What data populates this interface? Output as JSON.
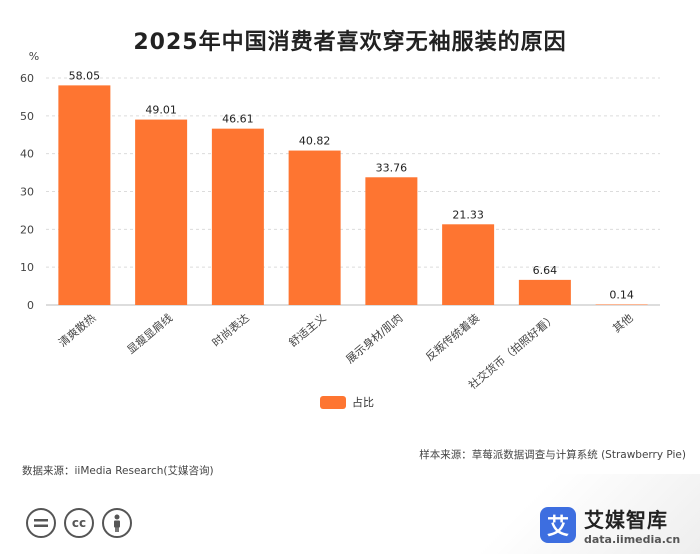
{
  "colors": {
    "bar": "#fe7531",
    "grid": "#dcdcdc",
    "axis_text": "#444444",
    "label_text": "#222222"
  },
  "chart_data": {
    "type": "bar",
    "title": "2025年中国消费者喜欢穿无袖服装的原因",
    "ylabel": "%",
    "xlabel": "",
    "ylim": [
      0,
      60
    ],
    "yticks": [
      0,
      10,
      20,
      30,
      40,
      50,
      60
    ],
    "grid": true,
    "categories": [
      "清爽散热",
      "显瘦显肩线",
      "时尚表达",
      "舒适主义",
      "展示身材/肌肉",
      "反叛传统着装",
      "社交货币（拍照好看）",
      "其他"
    ],
    "series": [
      {
        "name": "占比",
        "values": [
          58.05,
          49.01,
          46.61,
          40.82,
          33.76,
          21.33,
          6.64,
          0.14
        ]
      }
    ],
    "value_labels": [
      "58.05",
      "49.01",
      "46.61",
      "40.82",
      "33.76",
      "21.33",
      "6.64",
      "0.14"
    ]
  },
  "legend": {
    "label": "占比",
    "icon": "legend-swatch"
  },
  "sources": {
    "sample": "样本来源：草莓派数据调查与计算系统 (Strawberry Pie)",
    "data": "数据来源：iiMedia Research(艾媒咨询)"
  },
  "license": {
    "icons": [
      "equals-icon",
      "cc-icon",
      "person-icon"
    ],
    "cc_text": "cc"
  },
  "brand": {
    "name": "艾媒智库",
    "url": "data.iimedia.cn",
    "logo_char": "艾"
  }
}
